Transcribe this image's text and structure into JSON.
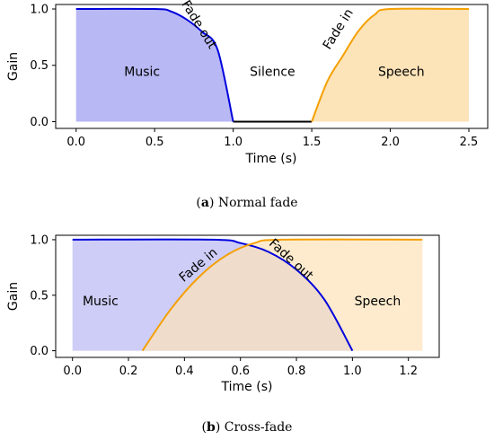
{
  "chart_data": [
    {
      "type": "area",
      "caption_letter": "a",
      "caption_text": "Normal fade",
      "xlabel": "Time (s)",
      "ylabel": "Gain",
      "xlim": [
        -0.13,
        2.62
      ],
      "ylim": [
        -0.06,
        1.04
      ],
      "xticks": [
        0.0,
        0.5,
        1.0,
        1.5,
        2.0,
        2.5
      ],
      "xtick_labels": [
        "0.0",
        "0.5",
        "1.0",
        "1.5",
        "2.0",
        "2.5"
      ],
      "yticks": [
        0.0,
        0.5,
        1.0
      ],
      "ytick_labels": [
        "0.0",
        "0.5",
        "1.0"
      ],
      "grid": false,
      "series": [
        {
          "name": "Music",
          "color": "#0000dd",
          "fill": "#b8b8f4",
          "x": [
            0.0,
            0.5,
            0.6,
            0.7,
            0.8,
            0.9,
            1.0
          ],
          "y": [
            1.0,
            1.0,
            0.98,
            0.91,
            0.8,
            0.64,
            0.0
          ]
        },
        {
          "name": "Silence",
          "color": "#000000",
          "x": [
            1.0,
            1.5
          ],
          "y": [
            0.0,
            0.0
          ]
        },
        {
          "name": "Speech",
          "color": "#f5a000",
          "fill": "#fde3b8",
          "x": [
            1.5,
            1.6,
            1.7,
            1.8,
            1.9,
            2.0,
            2.5
          ],
          "y": [
            0.0,
            0.36,
            0.59,
            0.81,
            0.95,
            1.0,
            1.0
          ]
        }
      ],
      "annotations": [
        {
          "text": "Music",
          "x": 0.42,
          "y": 0.44,
          "angle": 0
        },
        {
          "text": "Silence",
          "x": 1.25,
          "y": 0.44,
          "angle": 0
        },
        {
          "text": "Speech",
          "x": 2.07,
          "y": 0.44,
          "angle": 0
        },
        {
          "text": "Fade out",
          "x": 0.78,
          "y": 0.86,
          "angle": 58
        },
        {
          "text": "Fade in",
          "x": 1.67,
          "y": 0.82,
          "angle": -58
        }
      ]
    },
    {
      "type": "area",
      "caption_letter": "b",
      "caption_text": "Cross-fade",
      "xlabel": "Time (s)",
      "ylabel": "Gain",
      "xlim": [
        -0.06,
        1.31
      ],
      "ylim": [
        -0.06,
        1.04
      ],
      "xticks": [
        0.0,
        0.2,
        0.4,
        0.6,
        0.8,
        1.0,
        1.2
      ],
      "xtick_labels": [
        "0.0",
        "0.2",
        "0.4",
        "0.6",
        "0.8",
        "1.0",
        "1.2"
      ],
      "yticks": [
        0.0,
        0.5,
        1.0
      ],
      "ytick_labels": [
        "0.0",
        "0.5",
        "1.0"
      ],
      "grid": false,
      "series": [
        {
          "name": "Music",
          "color": "#0000dd",
          "fill": "#b8b8f4",
          "x": [
            0.0,
            0.5,
            0.6,
            0.7,
            0.8,
            0.9,
            1.0
          ],
          "y": [
            1.0,
            1.0,
            0.97,
            0.89,
            0.73,
            0.46,
            0.0
          ]
        },
        {
          "name": "Speech",
          "color": "#f5a000",
          "fill": "#fde3b8",
          "x": [
            0.25,
            0.35,
            0.45,
            0.55,
            0.65,
            0.75,
            1.25
          ],
          "y": [
            0.0,
            0.37,
            0.66,
            0.86,
            0.97,
            1.0,
            1.0
          ]
        }
      ],
      "overlap_fill": "#cbb6c2",
      "annotations": [
        {
          "text": "Music",
          "x": 0.1,
          "y": 0.44,
          "angle": 0
        },
        {
          "text": "Speech",
          "x": 1.09,
          "y": 0.44,
          "angle": 0
        },
        {
          "text": "Fade in",
          "x": 0.45,
          "y": 0.77,
          "angle": -40
        },
        {
          "text": "Fade out",
          "x": 0.78,
          "y": 0.82,
          "angle": 42
        }
      ]
    }
  ]
}
